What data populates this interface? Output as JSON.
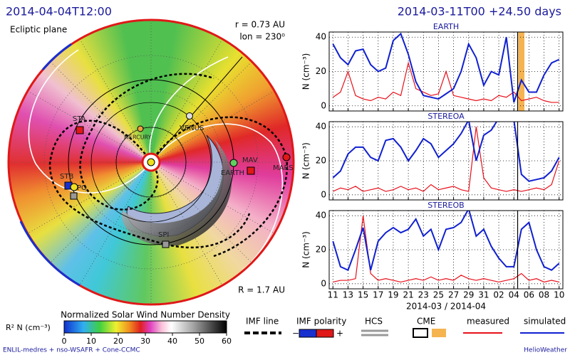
{
  "header": {
    "left_time": "2014-04-04T12:00",
    "right_time": "2014-03-11T00 +24.50 days"
  },
  "ecliptic": {
    "title": "Ecliptic plane",
    "radius_text": "r = 0.73 AU",
    "lon_text": "lon = 230⁰",
    "range_text": "R = 1.7 AU",
    "labels": [
      "STA",
      "MERCURY",
      "VENUS",
      "EARTH",
      "MAV",
      "MARS",
      "STB",
      "PO",
      "SPI"
    ]
  },
  "colorbar": {
    "title": "Normalized Solar Wind Number Density",
    "label": "R² N (cm⁻³)",
    "lim": [
      0,
      60
    ],
    "ticks": [
      0,
      10,
      20,
      30,
      40,
      50,
      60
    ]
  },
  "legend": {
    "imf_line": "IMF line",
    "imf_polarity": "IMF polarity",
    "minus": "−",
    "plus": "+",
    "hcs": "HCS",
    "cme": "CME",
    "measured": "measured",
    "simulated": "simulated"
  },
  "footer": {
    "left": "ENLIL-medres + nso-WSAFR + Cone-CCMC",
    "right": "HelioWeather"
  },
  "chart_data": [
    {
      "type": "line",
      "title": "EARTH",
      "y_label": "N (cm⁻³)",
      "x": [
        0,
        1,
        2,
        3,
        4,
        5,
        6,
        7,
        8,
        9,
        10,
        11,
        12,
        13,
        14,
        15,
        16,
        17,
        18,
        19,
        20,
        21,
        22,
        23,
        24,
        25,
        26,
        27,
        28,
        29,
        30
      ],
      "series": [
        {
          "name": "measured",
          "color": "#e8101a",
          "values": [
            5,
            8,
            20,
            6,
            4,
            3,
            5,
            4,
            8,
            6,
            25,
            10,
            8,
            6,
            7,
            20,
            6,
            5,
            4,
            3,
            4,
            3,
            6,
            5,
            8,
            3,
            4,
            5,
            3,
            2,
            2
          ]
        },
        {
          "name": "simulated",
          "color": "#1020d0",
          "values": [
            36,
            28,
            24,
            32,
            33,
            24,
            20,
            22,
            38,
            42,
            30,
            14,
            6,
            5,
            4,
            7,
            10,
            20,
            36,
            28,
            12,
            20,
            18,
            40,
            2,
            15,
            8,
            8,
            18,
            25,
            27
          ]
        }
      ],
      "xlim": [
        -0.5,
        30.5
      ],
      "ylim": [
        -3,
        43
      ],
      "yticks": [
        0,
        20,
        40
      ],
      "marker_x": 24.5,
      "cme_span": [
        24.6,
        25.4
      ]
    },
    {
      "type": "line",
      "title": "STEREOA",
      "y_label": "N (cm⁻³)",
      "x": [
        0,
        1,
        2,
        3,
        4,
        5,
        6,
        7,
        8,
        9,
        10,
        11,
        12,
        13,
        14,
        15,
        16,
        17,
        18,
        19,
        20,
        21,
        22,
        23,
        24,
        25,
        26,
        27,
        28,
        29,
        30
      ],
      "series": [
        {
          "name": "measured",
          "color": "#e8101a",
          "values": [
            2,
            4,
            3,
            5,
            2,
            3,
            4,
            2,
            3,
            5,
            3,
            4,
            2,
            6,
            3,
            4,
            5,
            3,
            2,
            40,
            10,
            4,
            3,
            2,
            3,
            2,
            3,
            4,
            3,
            6,
            20
          ]
        },
        {
          "name": "simulated",
          "color": "#1020d0",
          "values": [
            10,
            14,
            24,
            28,
            28,
            22,
            20,
            32,
            33,
            28,
            20,
            26,
            33,
            30,
            22,
            26,
            30,
            36,
            44,
            20,
            35,
            38,
            45,
            45,
            44,
            12,
            8,
            9,
            10,
            14,
            22
          ]
        }
      ],
      "xlim": [
        -0.5,
        30.5
      ],
      "ylim": [
        -3,
        43
      ],
      "yticks": [
        0,
        20,
        40
      ],
      "marker_x": 24.5
    },
    {
      "type": "line",
      "title": "STEREOB",
      "y_label": "N (cm⁻³)",
      "x_label": "2014-03 / 2014-04",
      "x": [
        0,
        1,
        2,
        3,
        4,
        5,
        6,
        7,
        8,
        9,
        10,
        11,
        12,
        13,
        14,
        15,
        16,
        17,
        18,
        19,
        20,
        21,
        22,
        23,
        24,
        25,
        26,
        27,
        28,
        29,
        30
      ],
      "series": [
        {
          "name": "measured",
          "color": "#e8101a",
          "values": [
            1,
            2,
            2,
            3,
            40,
            6,
            2,
            3,
            2,
            1,
            2,
            3,
            2,
            4,
            2,
            3,
            2,
            5,
            3,
            2,
            3,
            2,
            1,
            2,
            3,
            6,
            2,
            3,
            1,
            2,
            1
          ]
        },
        {
          "name": "simulated",
          "color": "#1020d0",
          "values": [
            25,
            10,
            8,
            20,
            33,
            8,
            25,
            30,
            33,
            30,
            32,
            38,
            28,
            32,
            20,
            32,
            33,
            36,
            44,
            28,
            32,
            22,
            15,
            10,
            10,
            32,
            36,
            20,
            10,
            8,
            12
          ]
        }
      ],
      "xlim": [
        -0.5,
        30.5
      ],
      "ylim": [
        -3,
        43
      ],
      "yticks": [
        0,
        20,
        40
      ],
      "marker_x": 24.5,
      "xticks": [
        {
          "value": 0,
          "label": "11"
        },
        {
          "value": 2,
          "label": "13"
        },
        {
          "value": 4,
          "label": "15"
        },
        {
          "value": 6,
          "label": "17"
        },
        {
          "value": 8,
          "label": "19"
        },
        {
          "value": 10,
          "label": "21"
        },
        {
          "value": 12,
          "label": "23"
        },
        {
          "value": 14,
          "label": "25"
        },
        {
          "value": 16,
          "label": "27"
        },
        {
          "value": 18,
          "label": "29"
        },
        {
          "value": 20,
          "label": "31"
        },
        {
          "value": 22,
          "label": "02"
        },
        {
          "value": 24,
          "label": "04"
        },
        {
          "value": 26,
          "label": "06"
        },
        {
          "value": 28,
          "label": "08"
        },
        {
          "value": 30,
          "label": "10"
        }
      ]
    }
  ]
}
